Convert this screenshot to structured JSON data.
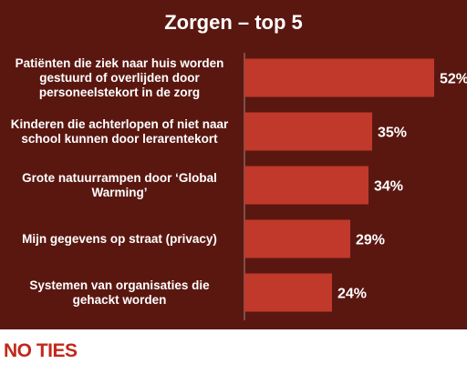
{
  "brand": {
    "logo_text": "NO TIES",
    "accent": "#c0281a"
  },
  "chart_data": {
    "type": "bar",
    "orientation": "horizontal",
    "title": "Zorgen – top 5",
    "categories": [
      "Patiënten die ziek naar huis worden gestuurd of overlijden door personeelstekort in de zorg",
      "Kinderen die achterlopen of niet naar school kunnen door lerarentekort",
      "Grote natuurrampen door ‘Global Warming’",
      "Mijn gegevens op straat (privacy)",
      "Systemen van organisaties die gehackt worden"
    ],
    "values": [
      52,
      35,
      34,
      29,
      24
    ],
    "value_labels": [
      "52%",
      "35%",
      "34%",
      "29%",
      "24%"
    ],
    "unit": "%",
    "xlim": [
      0,
      52
    ],
    "grid": false,
    "legend": "none",
    "colors": {
      "background": "#5a1710",
      "bar": "#c0392b",
      "text": "#ffffff"
    }
  }
}
